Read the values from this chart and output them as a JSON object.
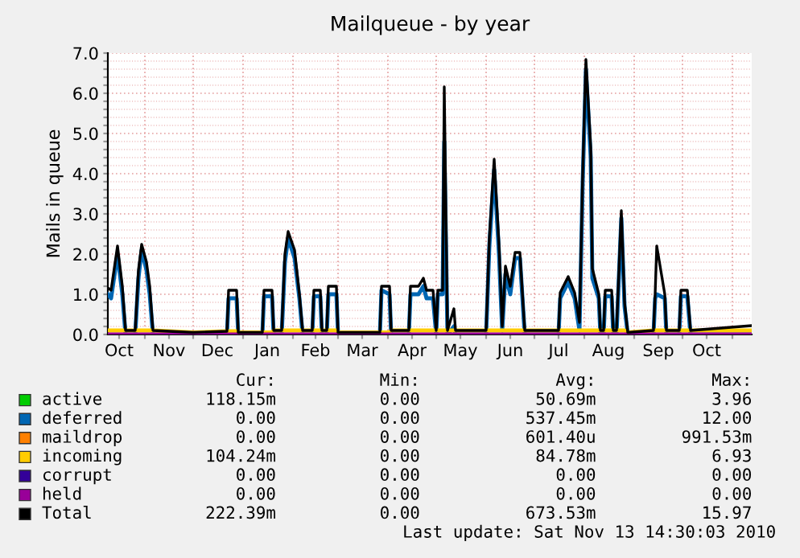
{
  "chart_data": {
    "type": "line",
    "title": "Mailqueue - by year",
    "ylabel": "Mails in queue",
    "x": [
      "2009-10-09",
      "2009-10-11",
      "2009-10-15",
      "2009-10-18",
      "2009-10-20",
      "2009-10-26",
      "2009-10-28",
      "2009-10-30",
      "2009-11-02",
      "2009-11-04",
      "2009-11-06",
      "2009-12-01",
      "2009-12-22",
      "2009-12-23",
      "2009-12-28",
      "2009-12-29",
      "2010-01-13",
      "2010-01-14",
      "2010-01-19",
      "2010-01-20",
      "2010-01-25",
      "2010-01-27",
      "2010-01-29",
      "2010-02-02",
      "2010-02-05",
      "2010-02-07",
      "2010-02-13",
      "2010-02-14",
      "2010-02-18",
      "2010-02-19",
      "2010-02-22",
      "2010-02-23",
      "2010-02-28",
      "2010-03-01",
      "2010-03-27",
      "2010-03-28",
      "2010-04-02",
      "2010-04-03",
      "2010-04-14",
      "2010-04-15",
      "2010-04-20",
      "2010-04-23",
      "2010-04-25",
      "2010-04-29",
      "2010-05-01",
      "2010-05-02",
      "2010-05-05",
      "2010-05-06",
      "2010-05-08",
      "2010-05-12",
      "2010-05-13",
      "2010-06-01",
      "2010-06-03",
      "2010-06-06",
      "2010-06-09",
      "2010-06-11",
      "2010-06-13",
      "2010-06-16",
      "2010-06-19",
      "2010-06-22",
      "2010-06-25",
      "2010-07-16",
      "2010-07-17",
      "2010-07-22",
      "2010-07-26",
      "2010-07-29",
      "2010-07-31",
      "2010-08-02",
      "2010-08-05",
      "2010-08-06",
      "2010-08-10",
      "2010-08-11",
      "2010-08-13",
      "2010-08-14",
      "2010-08-18",
      "2010-08-19",
      "2010-08-21",
      "2010-08-24",
      "2010-08-26",
      "2010-08-28",
      "2010-09-13",
      "2010-09-14",
      "2010-09-15",
      "2010-09-20",
      "2010-09-21",
      "2010-09-29",
      "2010-09-30",
      "2010-10-04",
      "2010-10-06",
      "2010-11-13"
    ],
    "series": [
      {
        "name": "active",
        "color": "#00cc00",
        "values": [
          null,
          null,
          null,
          null,
          null,
          null,
          null,
          null,
          null,
          null,
          null,
          null,
          null,
          null,
          null,
          null,
          null,
          null,
          null,
          null,
          null,
          null,
          null,
          null,
          null,
          null,
          null,
          null,
          null,
          null,
          null,
          null,
          null,
          null,
          null,
          null,
          null,
          null,
          null,
          null,
          null,
          null,
          null,
          null,
          null,
          null,
          null,
          null,
          null,
          null,
          null,
          null,
          null,
          null,
          null,
          null,
          null,
          null,
          null,
          null,
          null,
          null,
          null,
          null,
          null,
          null,
          null,
          null,
          null,
          null,
          null,
          null,
          null,
          null,
          null,
          null,
          null,
          null,
          null,
          null,
          null,
          null,
          null,
          null,
          null,
          null,
          null,
          null,
          null,
          null
        ]
      },
      {
        "name": "deferred",
        "color": "#0066b3",
        "values": [
          1.0,
          0.9,
          2.0,
          1.0,
          0,
          0,
          1.4,
          2.1,
          1.6,
          1.0,
          0,
          0,
          0,
          0.9,
          0.9,
          0,
          0,
          0.95,
          0.95,
          0,
          0,
          1.8,
          2.4,
          1.9,
          0.9,
          0,
          0,
          0.95,
          0.95,
          0,
          0,
          1.0,
          1.0,
          0,
          0,
          1.1,
          1.0,
          0,
          0,
          1.0,
          1.0,
          1.2,
          0.9,
          0.9,
          0,
          1.0,
          1.0,
          4.8,
          0,
          0.2,
          0,
          0,
          2.2,
          4.1,
          2.0,
          0.1,
          1.5,
          1.0,
          1.9,
          1.9,
          0,
          0,
          0.9,
          1.3,
          0.9,
          0.1,
          3.8,
          6.6,
          4.4,
          1.4,
          0.9,
          0,
          0,
          0.95,
          0.95,
          0,
          0,
          2.9,
          0.7,
          0,
          0,
          0.9,
          1.0,
          0.9,
          0,
          0,
          0.95,
          0.95,
          0,
          0
        ]
      },
      {
        "name": "maildrop",
        "color": "#ff8000",
        "values": [
          null,
          null,
          null,
          null,
          null,
          null,
          null,
          null,
          null,
          null,
          null,
          null,
          null,
          null,
          null,
          null,
          null,
          null,
          null,
          null,
          null,
          null,
          null,
          null,
          null,
          null,
          null,
          null,
          null,
          null,
          null,
          null,
          null,
          null,
          null,
          null,
          null,
          null,
          null,
          null,
          null,
          null,
          null,
          null,
          null,
          null,
          null,
          null,
          null,
          null,
          null,
          null,
          null,
          null,
          null,
          null,
          null,
          null,
          null,
          null,
          null,
          null,
          null,
          null,
          null,
          null,
          null,
          null,
          null,
          null,
          null,
          null,
          null,
          null,
          null,
          null,
          null,
          null,
          null,
          null,
          null,
          null,
          null,
          null,
          null,
          null,
          null,
          null,
          null,
          null
        ]
      },
      {
        "name": "incoming",
        "color": "#ffcc00",
        "values": [
          0.1,
          0.1,
          0.1,
          0.1,
          0.1,
          0.1,
          0.1,
          0.1,
          0.1,
          0.1,
          0.1,
          0.05,
          0.08,
          0.08,
          0.08,
          0.05,
          0.05,
          0.05,
          0.05,
          0.1,
          0.1,
          0.1,
          0.1,
          0.1,
          0.1,
          0.1,
          0.1,
          0.1,
          0.1,
          0.1,
          0.1,
          0.1,
          0.1,
          0.05,
          0.05,
          0.05,
          0.05,
          0.1,
          0.1,
          0.1,
          0.1,
          0.1,
          0.1,
          0.1,
          0.1,
          0.1,
          0.1,
          0.1,
          0.1,
          0.1,
          0.1,
          0.1,
          0.1,
          0.1,
          0.1,
          0.1,
          0.1,
          0.1,
          0.1,
          0.1,
          0.1,
          0.1,
          0.1,
          0.1,
          0.1,
          0.1,
          0.1,
          0.1,
          0.1,
          0.1,
          0.1,
          0.1,
          0.1,
          0.1,
          0.1,
          0.1,
          0.1,
          0.1,
          0.1,
          0.05,
          0.1,
          0.1,
          0.1,
          0.1,
          0.1,
          0.1,
          0.1,
          0.1,
          0.1,
          0.1
        ]
      },
      {
        "name": "corrupt",
        "color": "#330099",
        "values": [
          null,
          null,
          null,
          null,
          null,
          null,
          null,
          null,
          null,
          null,
          null,
          null,
          null,
          null,
          null,
          null,
          null,
          null,
          null,
          null,
          null,
          null,
          null,
          null,
          null,
          null,
          null,
          null,
          null,
          null,
          null,
          null,
          null,
          null,
          null,
          null,
          null,
          null,
          null,
          null,
          null,
          null,
          null,
          null,
          null,
          null,
          null,
          null,
          null,
          null,
          null,
          null,
          null,
          null,
          null,
          null,
          null,
          null,
          null,
          null,
          null,
          null,
          null,
          null,
          null,
          null,
          null,
          null,
          null,
          null,
          null,
          null,
          null,
          null,
          null,
          null,
          null,
          null,
          null,
          null,
          null,
          null,
          null,
          null,
          null,
          null,
          null,
          null,
          null,
          null
        ]
      },
      {
        "name": "held",
        "color": "#990099",
        "values": [
          0,
          0,
          0,
          0,
          0,
          0,
          0,
          0,
          0,
          0,
          0,
          0,
          0,
          0,
          0,
          0,
          0,
          0,
          0,
          0,
          0,
          0,
          0,
          0,
          0,
          0,
          0,
          0,
          0,
          0,
          0,
          0,
          0,
          0,
          0,
          0,
          0,
          0,
          0,
          0,
          0,
          0,
          0,
          0,
          0,
          0,
          0,
          0,
          0,
          0,
          0,
          0,
          0,
          0,
          0,
          0,
          0,
          0,
          0,
          0,
          0,
          0,
          0,
          0,
          0,
          0,
          0,
          0,
          0,
          0,
          0,
          0,
          0,
          0,
          0,
          0,
          0,
          0,
          0,
          0,
          0,
          0,
          0,
          0,
          0,
          0,
          0,
          0,
          0,
          0
        ]
      },
      {
        "name": "Total",
        "color": "#000000",
        "values": [
          1.16,
          1.1,
          2.2,
          1.2,
          0.1,
          0.1,
          1.6,
          2.24,
          1.8,
          1.2,
          0.1,
          0.05,
          0.08,
          1.1,
          1.1,
          0.05,
          0.05,
          1.1,
          1.1,
          0.1,
          0.1,
          2.0,
          2.56,
          2.1,
          1.0,
          0.1,
          0.1,
          1.1,
          1.1,
          0.1,
          0.1,
          1.2,
          1.2,
          0.05,
          0.05,
          1.2,
          1.2,
          0.1,
          0.1,
          1.2,
          1.2,
          1.4,
          1.1,
          1.1,
          0.1,
          1.1,
          1.1,
          6.16,
          0.1,
          0.64,
          0.1,
          0.1,
          2.4,
          4.36,
          2.24,
          0.2,
          1.7,
          1.2,
          2.04,
          2.04,
          0.1,
          0.1,
          1.04,
          1.44,
          1.04,
          0.3,
          4.0,
          6.84,
          4.64,
          1.64,
          1.0,
          0.1,
          0.1,
          1.1,
          1.1,
          0.1,
          0.1,
          3.08,
          0.8,
          0.05,
          0.1,
          1.0,
          2.2,
          1.0,
          0.1,
          0.1,
          1.1,
          1.1,
          0.1,
          0.22
        ]
      }
    ],
    "xlim": [
      "2009-10-09",
      "2010-11-13"
    ],
    "xticks": [
      {
        "value": "2009-10-16",
        "label": "Oct"
      },
      {
        "value": "2009-11-16",
        "label": "Nov"
      },
      {
        "value": "2009-12-16",
        "label": "Dec"
      },
      {
        "value": "2010-01-16",
        "label": "Jan"
      },
      {
        "value": "2010-02-15",
        "label": "Feb"
      },
      {
        "value": "2010-03-16",
        "label": "Mar"
      },
      {
        "value": "2010-04-16",
        "label": "Apr"
      },
      {
        "value": "2010-05-16",
        "label": "May"
      },
      {
        "value": "2010-06-16",
        "label": "Jun"
      },
      {
        "value": "2010-07-16",
        "label": "Jul"
      },
      {
        "value": "2010-08-16",
        "label": "Aug"
      },
      {
        "value": "2010-09-16",
        "label": "Sep"
      },
      {
        "value": "2010-10-16",
        "label": "Oct"
      },
      {
        "value": "2009-11-01",
        "label": null
      },
      {
        "value": "2009-12-01",
        "label": null
      },
      {
        "value": "2010-01-01",
        "label": null
      },
      {
        "value": "2010-02-01",
        "label": null
      },
      {
        "value": "2010-03-01",
        "label": null
      },
      {
        "value": "2010-04-01",
        "label": null
      },
      {
        "value": "2010-05-01",
        "label": null
      },
      {
        "value": "2010-06-01",
        "label": null
      },
      {
        "value": "2010-07-01",
        "label": null
      },
      {
        "value": "2010-08-01",
        "label": null
      },
      {
        "value": "2010-09-01",
        "label": null
      },
      {
        "value": "2010-10-01",
        "label": null
      },
      {
        "value": "2010-11-01",
        "label": null
      }
    ],
    "ylim": [
      0,
      7.0
    ],
    "yticks": [
      {
        "value": 0,
        "label": "0.0"
      },
      {
        "value": 1,
        "label": "1.0"
      },
      {
        "value": 2,
        "label": "2.0"
      },
      {
        "value": 3,
        "label": "3.0"
      },
      {
        "value": 4,
        "label": "4.0"
      },
      {
        "value": 5,
        "label": "5.0"
      },
      {
        "value": 6,
        "label": "6.0"
      },
      {
        "value": 7,
        "label": "7.0"
      },
      {
        "value": 0.2,
        "label": null
      },
      {
        "value": 0.4,
        "label": null
      },
      {
        "value": 0.6,
        "label": null
      },
      {
        "value": 0.8,
        "label": null
      },
      {
        "value": 1.2,
        "label": null
      },
      {
        "value": 1.4,
        "label": null
      },
      {
        "value": 1.6,
        "label": null
      },
      {
        "value": 1.8,
        "label": null
      },
      {
        "value": 2.2,
        "label": null
      },
      {
        "value": 2.4,
        "label": null
      },
      {
        "value": 2.6,
        "label": null
      },
      {
        "value": 2.8,
        "label": null
      },
      {
        "value": 3.2,
        "label": null
      },
      {
        "value": 3.4,
        "label": null
      },
      {
        "value": 3.6,
        "label": null
      },
      {
        "value": 3.8,
        "label": null
      },
      {
        "value": 4.2,
        "label": null
      },
      {
        "value": 4.4,
        "label": null
      },
      {
        "value": 4.6,
        "label": null
      },
      {
        "value": 4.8,
        "label": null
      },
      {
        "value": 5.2,
        "label": null
      },
      {
        "value": 5.4,
        "label": null
      },
      {
        "value": 5.6,
        "label": null
      },
      {
        "value": 5.8,
        "label": null
      },
      {
        "value": 6.2,
        "label": null
      },
      {
        "value": 6.4,
        "label": null
      },
      {
        "value": 6.6,
        "label": null
      },
      {
        "value": 6.8,
        "label": null
      }
    ],
    "grid": true,
    "legend": "bottom",
    "marker": "none",
    "line_style": "solid",
    "annotations": [
      "Cur:",
      "Min:",
      "Avg:",
      "Max:",
      "118.15m",
      "0.00",
      "50.69m",
      "3.96",
      "0.00",
      "0.00",
      "537.45m",
      "12.00",
      "0.00",
      "0.00",
      "601.40u",
      "991.53m",
      "104.24m",
      "0.00",
      "84.78m",
      "6.93",
      "0.00",
      "0.00",
      "0.00",
      "0.00",
      "0.00",
      "0.00",
      "0.00",
      "0.00",
      "222.39m",
      "0.00",
      "673.53m",
      "15.97",
      "Last update: Sat Nov 13 14:30:03 2010"
    ]
  }
}
